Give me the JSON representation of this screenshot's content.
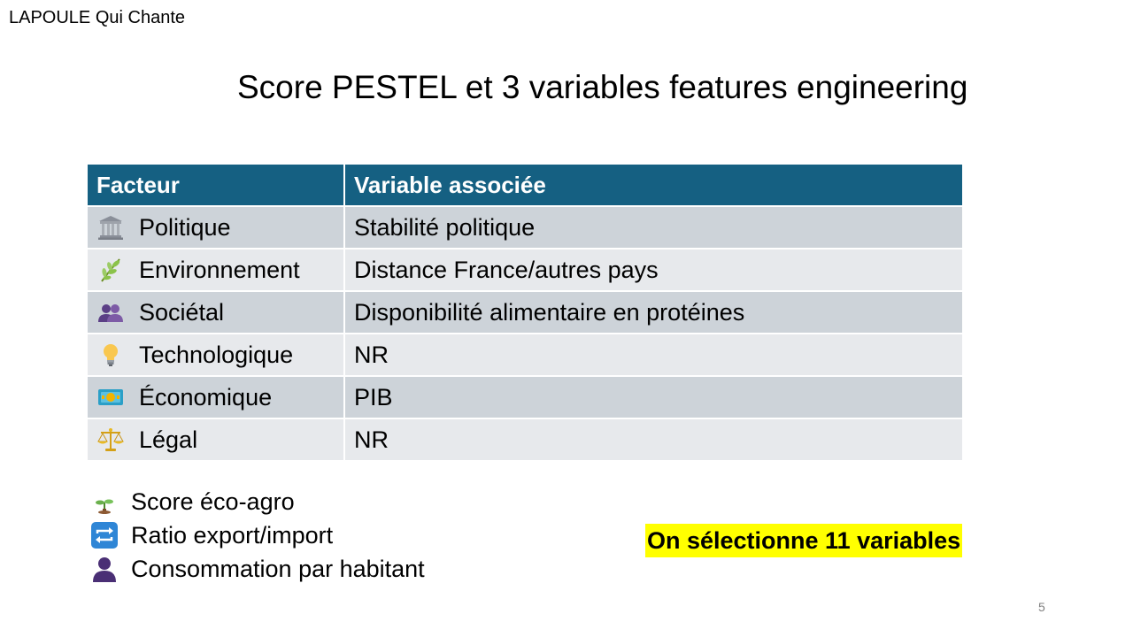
{
  "brand": "LAPOULE Qui Chante",
  "title": "Score PESTEL et 3 variables features engineering",
  "table": {
    "headers": [
      "Facteur",
      "Variable associée"
    ],
    "rows": [
      {
        "icon": "classical-building-icon",
        "factor": "Politique",
        "variable": "Stabilité politique"
      },
      {
        "icon": "herb-icon",
        "factor": "Environnement",
        "variable": "Distance France/autres pays"
      },
      {
        "icon": "people-icon",
        "factor": "Sociétal",
        "variable": "Disponibilité alimentaire en protéines"
      },
      {
        "icon": "light-bulb-icon",
        "factor": "Technologique",
        "variable": "NR"
      },
      {
        "icon": "banknote-icon",
        "factor": "Économique",
        "variable": "PIB"
      },
      {
        "icon": "balance-scale-icon",
        "factor": "Légal",
        "variable": "NR"
      }
    ]
  },
  "extras": [
    {
      "icon": "seedling-icon",
      "label": "Score éco-agro"
    },
    {
      "icon": "repeat-arrows-icon",
      "label": "Ratio export/import"
    },
    {
      "icon": "person-silhouette-icon",
      "label": "Consommation par habitant"
    }
  ],
  "highlight": "On sélectionne 11 variables",
  "page_number": "5",
  "colors": {
    "header_bg": "#156082",
    "row_dark": "#cdd3d9",
    "row_light": "#e7e9ec",
    "highlight": "#ffff00"
  }
}
